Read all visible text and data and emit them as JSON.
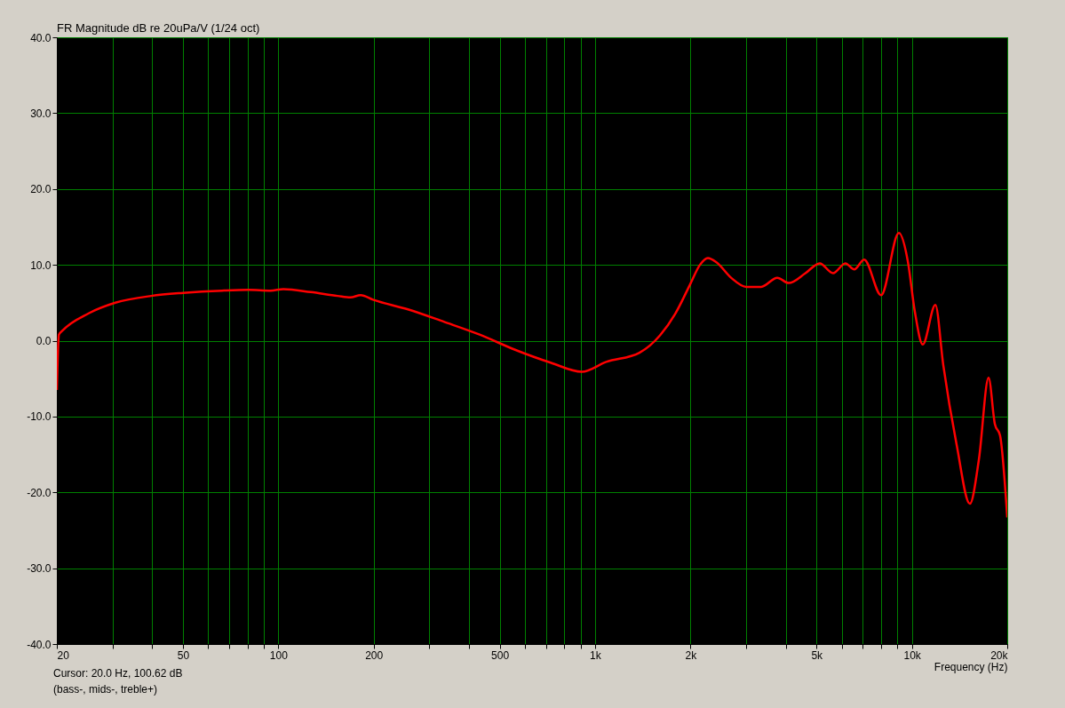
{
  "chart_data": {
    "type": "line",
    "title": "FR Magnitude dB re 20uPa/V (1/24 oct)",
    "xlabel": "Frequency (Hz)",
    "annotations": [
      "Cursor: 20.0 Hz, 100.62 dB",
      "(bass-, mids-, treble+)"
    ],
    "x": [
      20,
      20.3,
      20.8,
      25.2,
      30.6,
      39.7,
      50,
      66.4,
      80.6,
      94.6,
      103.8,
      126.7,
      153.8,
      169,
      182,
      199,
      258,
      333,
      432,
      559,
      724,
      908,
      1084,
      1380,
      1603,
      1788,
      1994,
      2143,
      2270,
      2421,
      2687,
      3000,
      3344,
      3759,
      4084,
      4614,
      5117,
      5638,
      6168,
      6578,
      7069,
      7995,
      9097,
      9705,
      10210,
      10820,
      11860,
      12560,
      13840,
      15240,
      16270,
      17460,
      18280,
      18980,
      20000
    ],
    "series": [
      {
        "color": "#ff0000",
        "values": [
          -6.5,
          0.8,
          1.3,
          3.6,
          5.0,
          5.9,
          6.3,
          6.6,
          6.7,
          6.6,
          6.8,
          6.4,
          5.9,
          5.7,
          6.0,
          5.4,
          4.1,
          2.5,
          0.8,
          -1.2,
          -2.9,
          -4.1,
          -2.8,
          -1.6,
          0.7,
          3.5,
          7.4,
          10.0,
          10.9,
          10.3,
          8.3,
          7.1,
          7.1,
          8.3,
          7.6,
          8.9,
          10.2,
          8.9,
          10.2,
          9.4,
          10.7,
          6.0,
          14.2,
          10.5,
          3.9,
          -0.5,
          4.7,
          -3.2,
          -13.7,
          -21.5,
          -15.7,
          -4.9,
          -11.0,
          -12.5,
          -23.3
        ]
      }
    ],
    "xlim": [
      20,
      20000
    ],
    "xticks": [
      20,
      {
        "value": 30,
        "label": null
      },
      {
        "value": 40,
        "label": null
      },
      50,
      {
        "value": 60,
        "label": null
      },
      {
        "value": 70,
        "label": null
      },
      {
        "value": 80,
        "label": null
      },
      {
        "value": 90,
        "label": null
      },
      100,
      200,
      {
        "value": 300,
        "label": null
      },
      {
        "value": 400,
        "label": null
      },
      500,
      {
        "value": 600,
        "label": null
      },
      {
        "value": 700,
        "label": null
      },
      {
        "value": 800,
        "label": null
      },
      {
        "value": 900,
        "label": null
      },
      {
        "value": 1000,
        "label": "1k"
      },
      {
        "value": 2000,
        "label": "2k"
      },
      {
        "value": 3000,
        "label": null
      },
      {
        "value": 4000,
        "label": null
      },
      {
        "value": 5000,
        "label": "5k"
      },
      {
        "value": 6000,
        "label": null
      },
      {
        "value": 7000,
        "label": null
      },
      {
        "value": 8000,
        "label": null
      },
      {
        "value": 9000,
        "label": null
      },
      {
        "value": 10000,
        "label": "10k"
      },
      {
        "value": 20000,
        "label": "20k"
      }
    ],
    "ylim": [
      -40,
      40
    ],
    "yticks": [
      {
        "value": -40,
        "label": "-40.0"
      },
      {
        "value": -30,
        "label": "-30.0"
      },
      {
        "value": -20,
        "label": "-20.0"
      },
      {
        "value": -10,
        "label": "-10.0"
      },
      {
        "value": 0,
        "label": "0.0"
      },
      {
        "value": 10,
        "label": "10.0"
      },
      {
        "value": 20,
        "label": "20.0"
      },
      {
        "value": 30,
        "label": "30.0"
      },
      {
        "value": 40,
        "label": "40.0"
      }
    ],
    "log": "x",
    "grid": true,
    "legend": false,
    "marker": "none",
    "line_style": "solid"
  }
}
